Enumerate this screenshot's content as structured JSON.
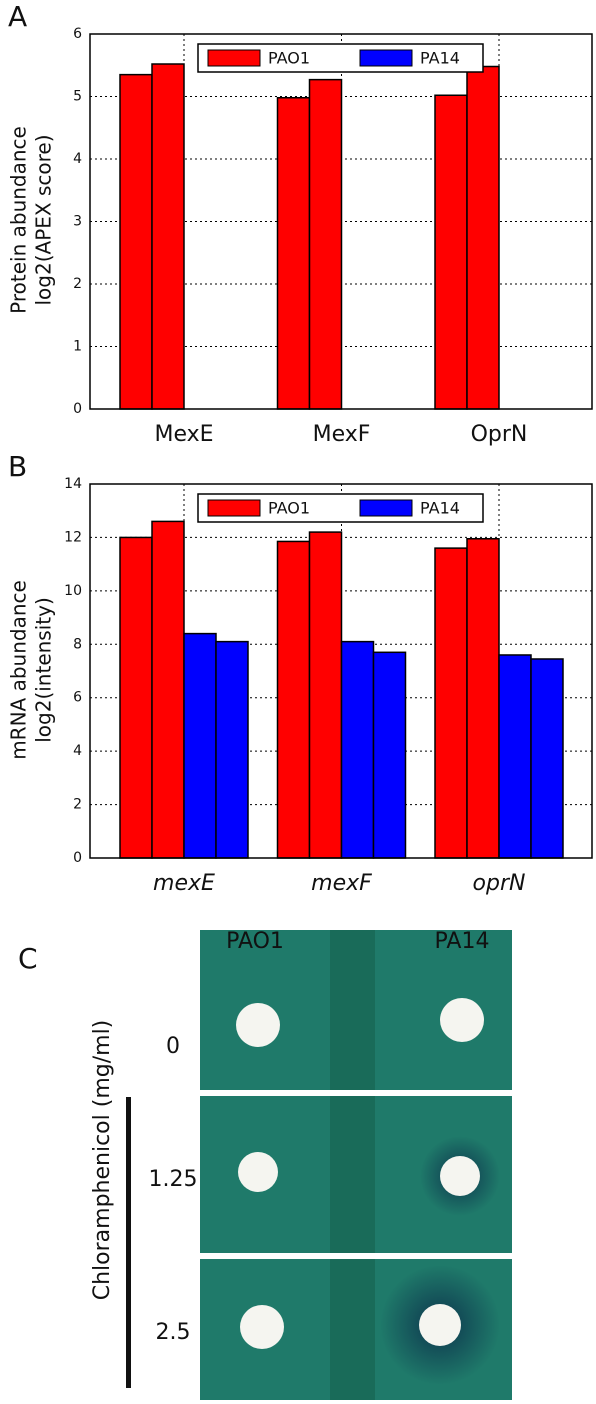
{
  "chart_data": [
    {
      "type": "bar",
      "panel_label": "A",
      "ylabel": [
        "Protein abundance",
        "log2(APEX score)"
      ],
      "categories": [
        "MexE",
        "MexF",
        "OprN"
      ],
      "italic_categories": false,
      "series": [
        {
          "name": "PAO1",
          "color": "#ff0000",
          "values": [
            [
              5.35,
              5.52
            ],
            [
              4.98,
              5.27
            ],
            [
              5.02,
              5.48
            ]
          ]
        },
        {
          "name": "PA14",
          "color": "#0000ff",
          "values": [
            [
              null,
              null
            ],
            [
              null,
              null
            ],
            [
              null,
              null
            ]
          ]
        }
      ],
      "ylim": [
        0,
        6
      ],
      "yticks": [
        0,
        1,
        2,
        3,
        4,
        5,
        6
      ],
      "grid": true,
      "legend": "upper center"
    },
    {
      "type": "bar",
      "panel_label": "B",
      "ylabel": [
        "mRNA abundance",
        "log2(intensity)"
      ],
      "categories": [
        "mexE",
        "mexF",
        "oprN"
      ],
      "italic_categories": true,
      "series": [
        {
          "name": "PAO1",
          "color": "#ff0000",
          "values": [
            [
              12.0,
              12.6
            ],
            [
              11.85,
              12.2
            ],
            [
              11.6,
              11.95
            ]
          ]
        },
        {
          "name": "PA14",
          "color": "#0000ff",
          "values": [
            [
              8.4,
              8.1
            ],
            [
              8.1,
              7.7
            ],
            [
              7.6,
              7.45
            ]
          ]
        }
      ],
      "ylim": [
        0,
        14
      ],
      "yticks": [
        0,
        2,
        4,
        6,
        8,
        10,
        12,
        14
      ],
      "grid": true,
      "legend": "upper center"
    }
  ],
  "photo_panel": {
    "panel_label": "C",
    "columns": [
      "PAO1",
      "PA14"
    ],
    "row_axis_label": "Chloramphenicol (mg/ml)",
    "rows": [
      "0",
      "1.25",
      "2.5"
    ]
  }
}
